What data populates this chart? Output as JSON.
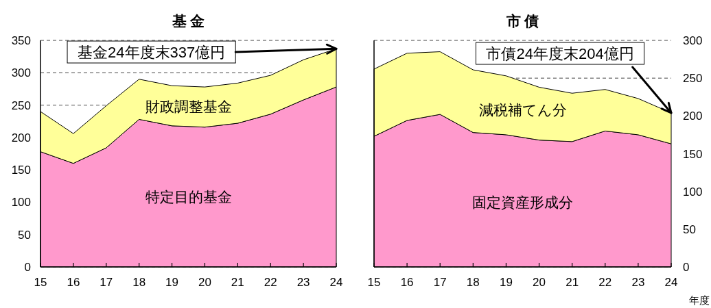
{
  "chart_data": [
    {
      "type": "area",
      "title": "基 金",
      "stacked": true,
      "x": [
        15,
        16,
        17,
        18,
        19,
        20,
        21,
        22,
        23,
        24
      ],
      "xlim": [
        15,
        24
      ],
      "xticks": [
        15,
        16,
        17,
        18,
        19,
        20,
        21,
        22,
        23,
        24
      ],
      "ylim": [
        0,
        350
      ],
      "yticks": [
        0,
        50,
        100,
        150,
        200,
        250,
        300,
        350
      ],
      "grid": "y",
      "series": [
        {
          "name": "特定目的基金",
          "color": "#ff99cc",
          "values": [
            178,
            160,
            184,
            228,
            218,
            216,
            222,
            236,
            258,
            278
          ]
        },
        {
          "name": "財政調整基金",
          "color": "#ffff99",
          "values": [
            62,
            46,
            65,
            62,
            62,
            62,
            62,
            60,
            62,
            59
          ]
        }
      ],
      "annotations": [
        {
          "text": "基金24年度末337億円",
          "x": 24,
          "y": 337
        }
      ]
    },
    {
      "type": "area",
      "title": "市 債",
      "stacked": true,
      "x": [
        15,
        16,
        17,
        18,
        19,
        20,
        21,
        22,
        23,
        24
      ],
      "xlim": [
        15,
        24
      ],
      "xticks": [
        15,
        16,
        17,
        18,
        19,
        20,
        21,
        22,
        23,
        24
      ],
      "xlabel": "年度",
      "ylim": [
        0,
        300
      ],
      "yticks": [
        0,
        50,
        100,
        150,
        200,
        250,
        300
      ],
      "grid": "y",
      "series": [
        {
          "name": "固定資産形成分",
          "color": "#ff99cc",
          "values": [
            173,
            194,
            202,
            178,
            175,
            168,
            166,
            180,
            175,
            163
          ]
        },
        {
          "name": "減税補てん分",
          "color": "#ffff99",
          "values": [
            89,
            89,
            83,
            83,
            78,
            70,
            64,
            55,
            48,
            41
          ]
        }
      ],
      "annotations": [
        {
          "text": "市債24年度末204億円",
          "x": 24,
          "y": 204
        }
      ]
    }
  ]
}
